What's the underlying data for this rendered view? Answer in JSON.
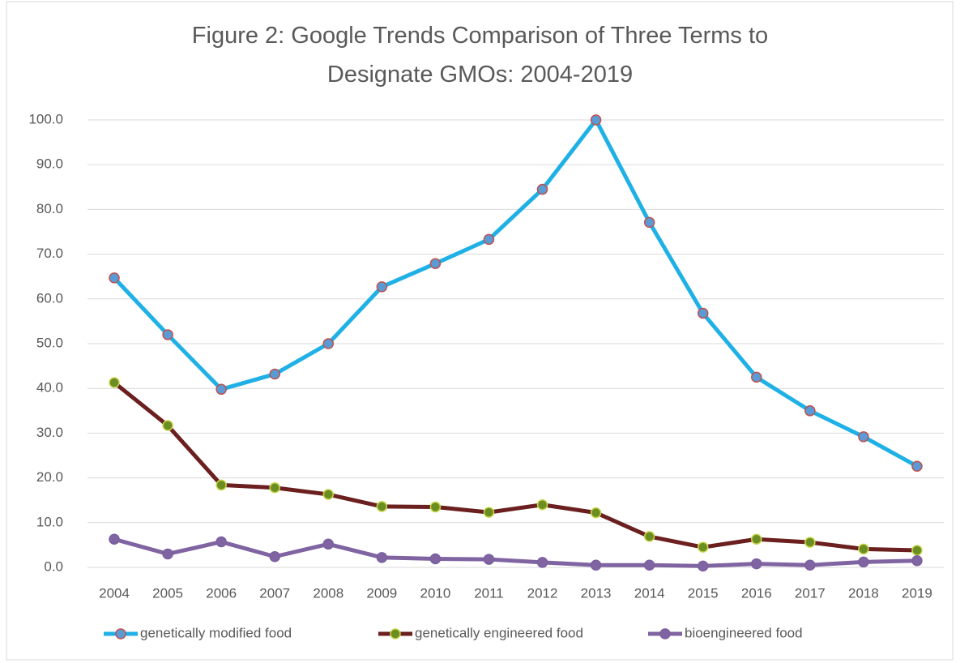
{
  "chart_data": {
    "type": "line",
    "title": "Figure 2: Google Trends Comparison of Three Terms to Designate GMOs: 2004-2019",
    "categories": [
      "2004",
      "2005",
      "2006",
      "2007",
      "2008",
      "2009",
      "2010",
      "2011",
      "2012",
      "2013",
      "2014",
      "2015",
      "2016",
      "2017",
      "2018",
      "2019"
    ],
    "series": [
      {
        "name": "genetically modified food",
        "color": "#1fb1e6",
        "marker_fill": "#5b9bd5",
        "marker_edge": "#c0504d",
        "values": [
          64.7,
          52.0,
          39.8,
          43.2,
          50.0,
          62.7,
          67.9,
          73.3,
          84.5,
          100,
          77.1,
          56.8,
          42.5,
          35.0,
          29.2,
          22.6
        ]
      },
      {
        "name": "genetically engineered food",
        "color": "#6b1f1f",
        "marker_fill": "#6b8e23",
        "marker_edge": "#c8d64a",
        "values": [
          41.3,
          31.7,
          18.4,
          17.8,
          16.3,
          13.6,
          13.5,
          12.3,
          14.0,
          12.2,
          6.9,
          4.5,
          6.3,
          5.6,
          4.1,
          3.8
        ]
      },
      {
        "name": "bioengineered food",
        "color": "#8064a2",
        "marker_fill": "#8064a2",
        "marker_edge": "#7a5fa0",
        "values": [
          6.3,
          3.0,
          5.7,
          2.4,
          5.2,
          2.2,
          1.9,
          1.8,
          1.1,
          0.5,
          0.5,
          0.3,
          0.8,
          0.5,
          1.2,
          1.5
        ]
      }
    ],
    "ylim": [
      0,
      100
    ],
    "yticks": [
      {
        "value": 0,
        "label": "0.0"
      },
      {
        "value": 10,
        "label": "10.0"
      },
      {
        "value": 20,
        "label": "20.0"
      },
      {
        "value": 30,
        "label": "30.0"
      },
      {
        "value": 40,
        "label": "40.0"
      },
      {
        "value": 50,
        "label": "50.0"
      },
      {
        "value": 60,
        "label": "60.0"
      },
      {
        "value": 70,
        "label": "70.0"
      },
      {
        "value": 80,
        "label": "80.0"
      },
      {
        "value": 90,
        "label": "90.0"
      },
      {
        "value": 100,
        "label": "100.0"
      }
    ],
    "grid": true,
    "legend": "bottom"
  }
}
